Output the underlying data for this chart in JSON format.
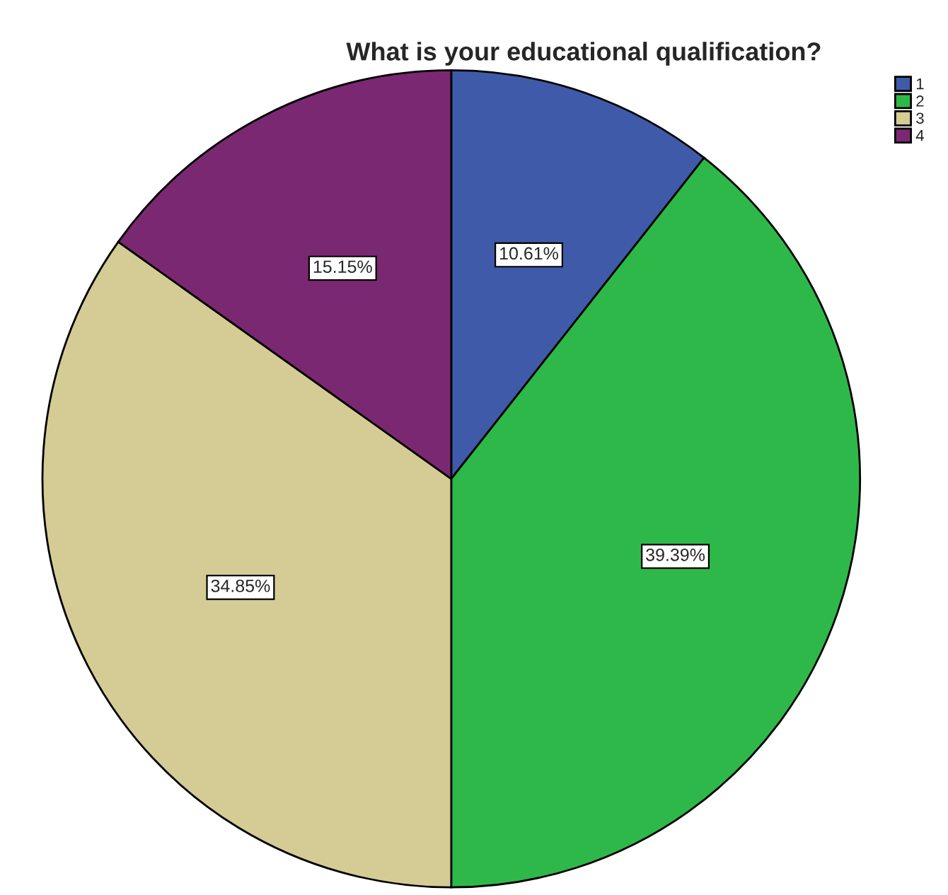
{
  "chart_data": {
    "type": "pie",
    "title": "What is your educational qualification?",
    "categories": [
      "1",
      "2",
      "3",
      "4"
    ],
    "values": [
      10.61,
      39.39,
      34.85,
      15.15
    ],
    "colors": [
      "#3f5aa8",
      "#2fb84a",
      "#d4cc94",
      "#7b2872"
    ],
    "value_labels": [
      "10.61%",
      "39.39%",
      "34.85%",
      "15.15%"
    ],
    "legend": "top right"
  }
}
